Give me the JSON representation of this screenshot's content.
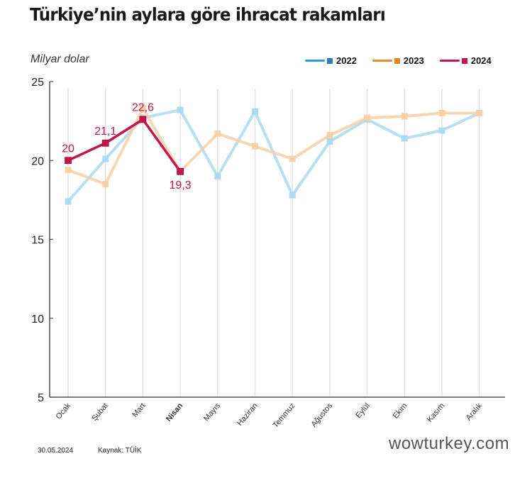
{
  "header": {
    "title": "Türkiye’nin aylara göre ihracat rakamları",
    "unit_label": "Milyar dolar"
  },
  "legend": [
    {
      "label": "2022",
      "color": "#2a9fd6"
    },
    {
      "label": "2023",
      "color": "#ef8a24"
    },
    {
      "label": "2024",
      "color": "#c8144b"
    }
  ],
  "footer": {
    "date": "30.05.2024",
    "source": "Kaynak: TÜİK",
    "watermark": "wowturkey.com"
  },
  "chart_data": {
    "type": "line",
    "title": "Türkiye’nin aylara göre ihracat rakamları",
    "ylabel": "Milyar dolar",
    "xlabel": "",
    "ylim": [
      5,
      25
    ],
    "yticks": [
      5,
      10,
      15,
      20,
      25
    ],
    "grid": "vertical lines at each month",
    "legend_position": "top-right",
    "categories": [
      "Ocak",
      "Şubat",
      "Mart",
      "Nisan",
      "Mayıs",
      "Haziran",
      "Temmuz",
      "Ağustos",
      "Eylül",
      "Ekim",
      "Kasım",
      "Aralık"
    ],
    "highlighted_category": "Nisan",
    "series": [
      {
        "name": "2022",
        "color": "#a8daf0",
        "values": [
          17.4,
          20.1,
          22.7,
          23.2,
          19.0,
          23.1,
          17.8,
          21.2,
          22.6,
          21.4,
          21.9,
          23.0
        ]
      },
      {
        "name": "2023",
        "color": "#f8cfa4",
        "values": [
          19.4,
          18.5,
          23.3,
          19.3,
          21.7,
          20.9,
          20.1,
          21.6,
          22.7,
          22.8,
          23.0,
          23.0
        ]
      },
      {
        "name": "2024",
        "color": "#c8144b",
        "values": [
          20.0,
          21.1,
          22.6,
          19.3
        ],
        "labels": [
          "20",
          "21,1",
          "22,6",
          "19,3"
        ]
      }
    ]
  }
}
